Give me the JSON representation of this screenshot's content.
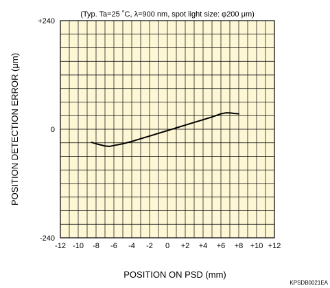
{
  "chart_data": {
    "type": "line",
    "title": "(Typ. Ta=25 ˚C, λ=900 nm, spot light size: φ200 μm)",
    "xlabel": "POSITION ON PSD (mm)",
    "ylabel": "POSITION DETECTION ERROR (μm)",
    "xlim": [
      -12,
      12
    ],
    "ylim": [
      -240,
      240
    ],
    "x_tick_labels": [
      "-12",
      "-10",
      "-8",
      "-6",
      "-4",
      "-2",
      "0",
      "+2",
      "+4",
      "+6",
      "+8",
      "+10",
      "+12"
    ],
    "y_tick_labels": [
      "+240",
      "0",
      "-240"
    ],
    "grid": true,
    "grid_x_step": 1,
    "grid_y_step": 30,
    "series": [
      {
        "x": [
          -8.5,
          -8,
          -7,
          -6.5,
          -6,
          -5,
          -4,
          -3,
          -2,
          -1,
          0,
          1,
          2,
          3,
          4,
          5,
          6,
          6.5,
          7,
          7.5,
          8
        ],
        "y": [
          -29,
          -32,
          -37,
          -38,
          -36,
          -32,
          -27,
          -21,
          -15,
          -9,
          -3,
          3,
          9,
          15,
          21,
          27,
          34,
          36,
          36,
          35,
          34
        ]
      }
    ]
  },
  "figure_code": "KPSDB0021EA"
}
